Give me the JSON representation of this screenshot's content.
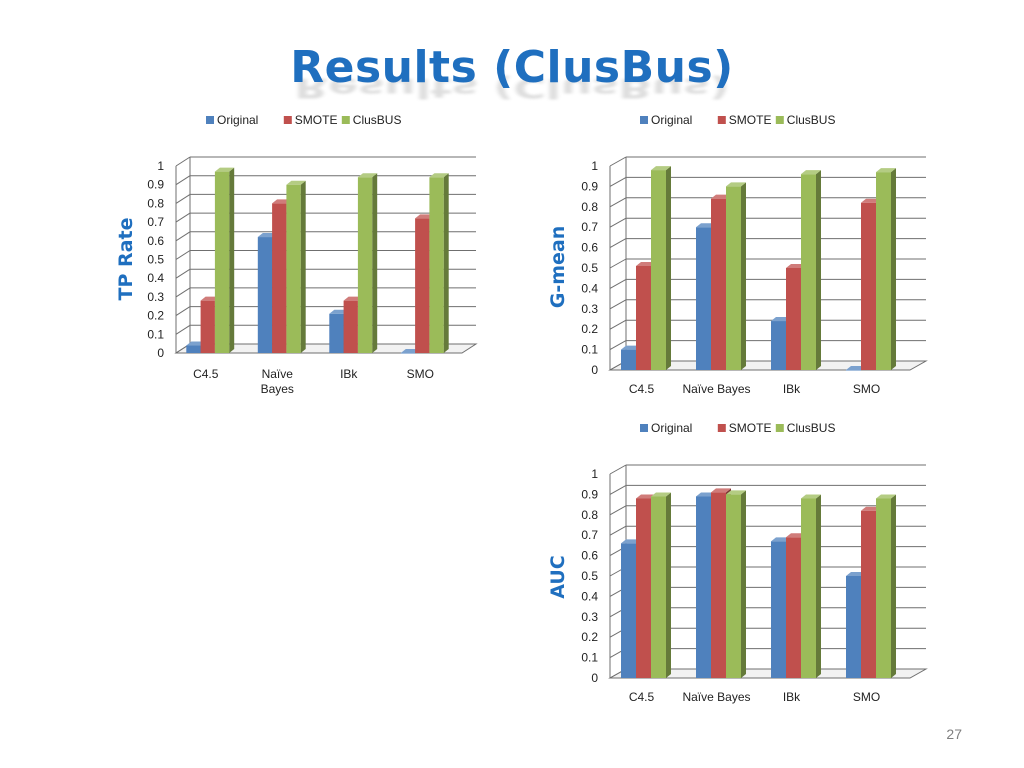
{
  "slide": {
    "title": "Results (ClusBus)",
    "page_number": "27"
  },
  "colors": {
    "Original": "#4f81bd",
    "SMOTE": "#c0504d",
    "ClusBUS": "#9bbb59"
  },
  "chart_data": [
    {
      "type": "bar",
      "title": "",
      "xlabel": "",
      "ylabel": "TP Rate",
      "ylim": [
        0,
        1
      ],
      "yticks": [
        "0",
        "0.1",
        "0.2",
        "0.3",
        "0.4",
        "0.5",
        "0.6",
        "0.7",
        "0.8",
        "0.9",
        "1"
      ],
      "categories": [
        "C4.5",
        "Naïve Bayes",
        "IBk",
        "SMO"
      ],
      "category_lines": [
        [
          "C4.5"
        ],
        [
          "Naïve",
          "Bayes"
        ],
        [
          "IBk"
        ],
        [
          "SMO"
        ]
      ],
      "legend": [
        "Original",
        "SMOTE",
        "ClusBUS"
      ],
      "legend_position": "top",
      "grid": true,
      "series": [
        {
          "name": "Original",
          "values": [
            0.04,
            0.62,
            0.21,
            0.0
          ]
        },
        {
          "name": "SMOTE",
          "values": [
            0.28,
            0.8,
            0.28,
            0.72
          ]
        },
        {
          "name": "ClusBUS",
          "values": [
            0.97,
            0.9,
            0.94,
            0.94
          ]
        }
      ]
    },
    {
      "type": "bar",
      "title": "",
      "xlabel": "",
      "ylabel": "G-mean",
      "ylim": [
        0,
        1
      ],
      "yticks": [
        "0",
        "0.1",
        "0.2",
        "0.3",
        "0.4",
        "0.5",
        "0.6",
        "0.7",
        "0.8",
        "0.9",
        "1"
      ],
      "categories": [
        "C4.5",
        "Naïve Bayes",
        "IBk",
        "SMO"
      ],
      "category_lines": [
        [
          "C4.5"
        ],
        [
          "Naïve Bayes"
        ],
        [
          "IBk"
        ],
        [
          "SMO"
        ]
      ],
      "legend": [
        "Original",
        "SMOTE",
        "ClusBUS"
      ],
      "legend_position": "top",
      "grid": true,
      "series": [
        {
          "name": "Original",
          "values": [
            0.1,
            0.7,
            0.24,
            0.0
          ]
        },
        {
          "name": "SMOTE",
          "values": [
            0.51,
            0.84,
            0.5,
            0.82
          ]
        },
        {
          "name": "ClusBUS",
          "values": [
            0.98,
            0.9,
            0.96,
            0.97
          ]
        }
      ]
    },
    {
      "type": "bar",
      "title": "",
      "xlabel": "",
      "ylabel": "AUC",
      "ylim": [
        0,
        1
      ],
      "yticks": [
        "0",
        "0.1",
        "0.2",
        "0.3",
        "0.4",
        "0.5",
        "0.6",
        "0.7",
        "0.8",
        "0.9",
        "1"
      ],
      "categories": [
        "C4.5",
        "Naïve Bayes",
        "IBk",
        "SMO"
      ],
      "category_lines": [
        [
          "C4.5"
        ],
        [
          "Naïve Bayes"
        ],
        [
          "IBk"
        ],
        [
          "SMO"
        ]
      ],
      "legend": [
        "Original",
        "SMOTE",
        "ClusBUS"
      ],
      "legend_position": "top",
      "grid": true,
      "series": [
        {
          "name": "Original",
          "values": [
            0.66,
            0.89,
            0.67,
            0.5
          ]
        },
        {
          "name": "SMOTE",
          "values": [
            0.88,
            0.91,
            0.69,
            0.82
          ]
        },
        {
          "name": "ClusBUS",
          "values": [
            0.89,
            0.9,
            0.88,
            0.88
          ]
        }
      ]
    }
  ]
}
